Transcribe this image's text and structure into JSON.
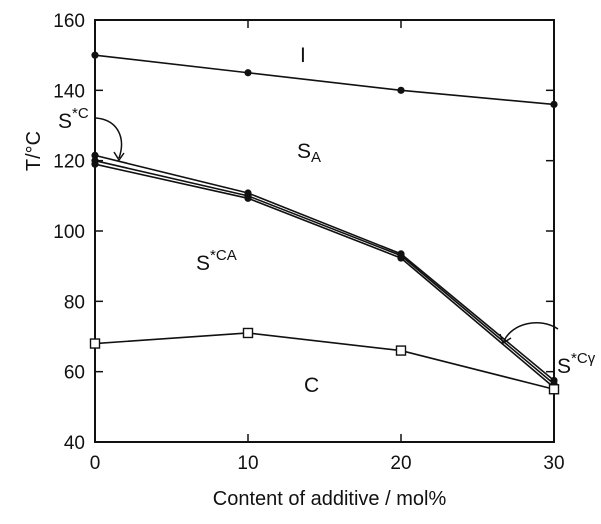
{
  "chart_data": {
    "type": "line",
    "xlabel": "Content of additive / mol%",
    "ylabel": "T/°C",
    "xlim": [
      0,
      30
    ],
    "ylim": [
      40,
      160
    ],
    "x_ticks": [
      "0",
      "10",
      "20",
      "30"
    ],
    "y_ticks": [
      "40",
      "60",
      "80",
      "100",
      "120",
      "140",
      "160"
    ],
    "grid": false,
    "series": [
      {
        "x": [
          0,
          10,
          20,
          30
        ],
        "y": [
          150,
          145,
          140,
          136
        ],
        "marker": "filled-circle"
      },
      {
        "x": [
          0,
          10,
          20,
          30
        ],
        "y": [
          121.5,
          110.8,
          93.5,
          57.5
        ],
        "marker": "filled-circle"
      },
      {
        "x": [
          0,
          10,
          20,
          30
        ],
        "y": [
          120,
          110,
          93,
          56.5
        ],
        "marker": "filled-circle"
      },
      {
        "x": [
          0,
          10,
          20,
          30
        ],
        "y": [
          119,
          109.3,
          92.3,
          55.5
        ],
        "marker": "filled-circle"
      },
      {
        "x": [
          0,
          10,
          20,
          30
        ],
        "y": [
          68,
          71,
          66,
          55
        ],
        "marker": "open-square"
      }
    ],
    "region_labels": {
      "I": "I",
      "SA": {
        "main": "S",
        "sub": "A"
      },
      "SCA": {
        "main": "S",
        "sub": "CA",
        "sup": "*"
      },
      "SC": {
        "main": "S",
        "sub": "C",
        "sup": "*"
      },
      "SCgamma": {
        "main": "S",
        "sub": "Cγ",
        "sup": "*"
      },
      "C": "C"
    }
  }
}
